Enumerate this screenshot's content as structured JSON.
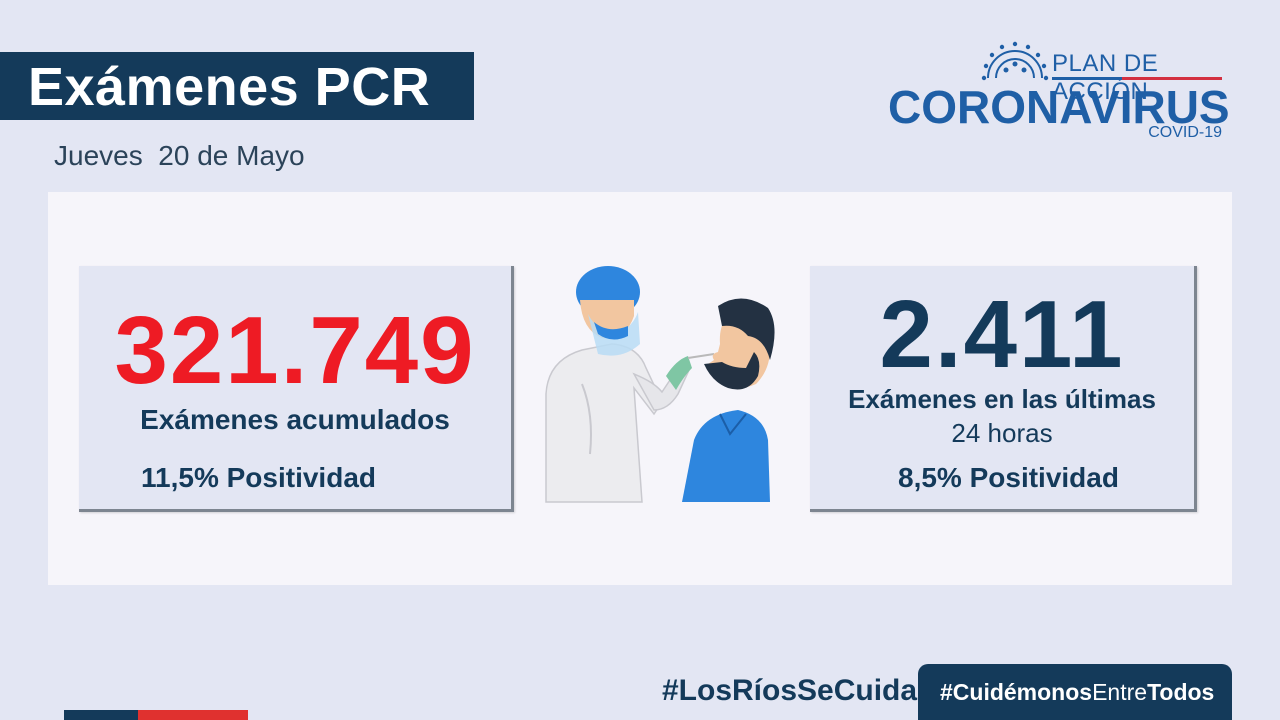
{
  "header": {
    "title": "Exámenes PCR",
    "date": "Jueves  20 de Mayo"
  },
  "logo": {
    "plan": "PLAN DE ACCIÓN",
    "brand": "CORONAVIRUS",
    "covid": "COVID-19"
  },
  "cards": {
    "cumulative": {
      "value": "321.749",
      "label": "Exámenes acumulados",
      "positivity": "11,5% Positividad"
    },
    "last24": {
      "value": "2.411",
      "label_line1": "Exámenes en las últimas",
      "label_line2": "24 horas",
      "positivity": "8,5% Positividad"
    }
  },
  "footer": {
    "hashtag_rios": "#LosRíosSeCuida",
    "hashtag_part1": "#Cuidémonos",
    "hashtag_part2": "Entre",
    "hashtag_part3": "Todos"
  },
  "colors": {
    "navy": "#143a5a",
    "red": "#ee1b24",
    "brand_blue": "#1f5fa6",
    "background": "#e3e6f3"
  }
}
